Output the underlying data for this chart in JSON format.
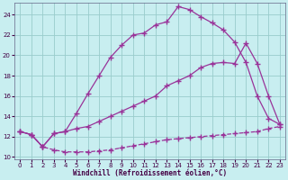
{
  "xlabel": "Windchill (Refroidissement éolien,°C)",
  "bg_color": "#c8eef0",
  "grid_color": "#99cccc",
  "line_color": "#993399",
  "xlim": [
    -0.5,
    23.5
  ],
  "ylim": [
    9.8,
    25.2
  ],
  "xticks": [
    0,
    1,
    2,
    3,
    4,
    5,
    6,
    7,
    8,
    9,
    10,
    11,
    12,
    13,
    14,
    15,
    16,
    17,
    18,
    19,
    20,
    21,
    22,
    23
  ],
  "yticks": [
    10,
    12,
    14,
    16,
    18,
    20,
    22,
    24
  ],
  "line1_x": [
    0,
    1,
    2,
    3,
    4,
    5,
    6,
    7,
    8,
    9,
    10,
    11,
    12,
    13,
    14,
    15,
    16,
    17,
    18,
    19,
    20,
    21,
    22,
    23
  ],
  "line1_y": [
    12.5,
    12.2,
    11.0,
    10.7,
    10.5,
    10.5,
    10.5,
    10.6,
    10.7,
    10.9,
    11.1,
    11.3,
    11.5,
    11.7,
    11.8,
    11.9,
    12.0,
    12.1,
    12.2,
    12.3,
    12.4,
    12.5,
    12.8,
    13.0
  ],
  "line2_x": [
    0,
    1,
    2,
    3,
    4,
    5,
    6,
    7,
    8,
    9,
    10,
    11,
    12,
    13,
    14,
    15,
    16,
    17,
    18,
    19,
    20,
    21,
    22,
    23
  ],
  "line2_y": [
    12.5,
    12.2,
    11.0,
    12.3,
    12.5,
    14.3,
    16.2,
    18.0,
    19.8,
    21.0,
    22.0,
    22.2,
    23.0,
    23.3,
    24.8,
    24.5,
    23.8,
    23.2,
    22.5,
    21.3,
    19.3,
    16.0,
    13.8,
    13.2
  ],
  "line3_x": [
    0,
    1,
    2,
    3,
    4,
    5,
    6,
    7,
    8,
    9,
    10,
    11,
    12,
    13,
    14,
    15,
    16,
    17,
    18,
    19,
    20,
    21,
    22,
    23
  ],
  "line3_y": [
    12.5,
    12.2,
    11.0,
    12.3,
    12.5,
    12.8,
    13.0,
    13.5,
    14.0,
    14.5,
    15.0,
    15.5,
    16.0,
    17.0,
    17.5,
    18.0,
    18.8,
    19.2,
    19.3,
    19.2,
    21.2,
    19.2,
    16.0,
    13.2
  ],
  "line1_dashed": true
}
